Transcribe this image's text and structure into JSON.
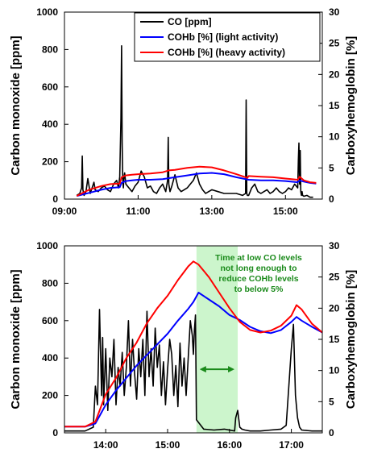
{
  "chart_data": [
    {
      "type": "line",
      "x_range": [
        "09:00",
        "16:00"
      ],
      "x_ticks": [
        "09:00",
        "11:00",
        "13:00",
        "15:00"
      ],
      "ylabel": "Carbon monoxide [ppm]",
      "ylim": [
        0,
        1000
      ],
      "y_ticks": [
        "0",
        "200",
        "400",
        "600",
        "800",
        "1000"
      ],
      "y2label": "Carboxyhemoglobin [%]",
      "y2lim": [
        0,
        30
      ],
      "y2_ticks": [
        "0",
        "5",
        "10",
        "15",
        "20",
        "25",
        "30"
      ],
      "grid": false,
      "legend_position": "top-right",
      "series": [
        {
          "name": "CO [ppm]",
          "axis": "left",
          "color": "#000000",
          "x": [
            "09:20",
            "09:25",
            "09:28",
            "09:29",
            "09:30",
            "09:32",
            "09:35",
            "09:38",
            "09:40",
            "09:42",
            "09:45",
            "09:48",
            "09:50",
            "09:55",
            "10:00",
            "10:05",
            "10:10",
            "10:15",
            "10:20",
            "10:25",
            "10:28",
            "10:30",
            "10:32",
            "10:33",
            "10:34",
            "10:35",
            "10:36",
            "10:37",
            "10:38",
            "10:40",
            "10:45",
            "10:50",
            "10:55",
            "11:00",
            "11:05",
            "11:10",
            "11:15",
            "11:20",
            "11:25",
            "11:30",
            "11:35",
            "11:40",
            "11:45",
            "11:48",
            "11:49",
            "11:50",
            "11:52",
            "11:55",
            "12:00",
            "12:05",
            "12:10",
            "12:15",
            "12:20",
            "12:25",
            "12:30",
            "12:35",
            "12:40",
            "12:45",
            "12:50",
            "12:55",
            "13:00",
            "13:10",
            "13:20",
            "13:30",
            "13:40",
            "13:50",
            "13:55",
            "13:56",
            "13:57",
            "13:58",
            "14:00",
            "14:05",
            "14:10",
            "14:15",
            "14:20",
            "14:25",
            "14:30",
            "14:35",
            "14:40",
            "14:45",
            "14:50",
            "14:55",
            "15:00",
            "15:05",
            "15:10",
            "15:15",
            "15:20",
            "15:21",
            "15:22",
            "15:23",
            "15:24",
            "15:25",
            "15:26",
            "15:27",
            "15:28",
            "15:30",
            "15:35",
            "15:40",
            "15:45"
          ],
          "values": [
            20,
            30,
            60,
            230,
            50,
            20,
            40,
            110,
            70,
            30,
            60,
            90,
            50,
            40,
            60,
            70,
            50,
            40,
            80,
            100,
            60,
            120,
            430,
            820,
            300,
            100,
            60,
            120,
            140,
            80,
            60,
            40,
            70,
            90,
            150,
            120,
            60,
            70,
            40,
            30,
            60,
            80,
            40,
            100,
            330,
            80,
            40,
            70,
            130,
            60,
            40,
            50,
            60,
            80,
            100,
            140,
            80,
            50,
            30,
            40,
            50,
            40,
            30,
            30,
            30,
            20,
            30,
            530,
            30,
            20,
            20,
            60,
            80,
            40,
            30,
            40,
            50,
            30,
            40,
            60,
            40,
            30,
            40,
            60,
            50,
            80,
            60,
            210,
            300,
            80,
            260,
            40,
            20,
            40,
            20,
            15,
            20,
            10,
            10
          ]
        },
        {
          "name": "COHb [%] (light activity)",
          "axis": "right",
          "color": "#0000ff",
          "x": [
            "09:20",
            "09:40",
            "10:00",
            "10:15",
            "10:30",
            "10:33",
            "10:40",
            "10:50",
            "11:00",
            "11:20",
            "11:40",
            "12:00",
            "12:20",
            "12:40",
            "13:00",
            "13:20",
            "13:40",
            "14:00",
            "14:20",
            "14:40",
            "15:00",
            "15:20",
            "15:23",
            "15:30",
            "15:40",
            "15:50"
          ],
          "values": [
            0.5,
            1.0,
            1.5,
            1.8,
            1.9,
            2.6,
            2.9,
            3.0,
            3.1,
            3.1,
            3.2,
            3.5,
            3.8,
            4.1,
            4.2,
            4.0,
            3.5,
            3.1,
            3.0,
            3.0,
            2.9,
            2.7,
            3.0,
            2.8,
            2.6,
            2.5
          ]
        },
        {
          "name": "COHb [%] (heavy activity)",
          "axis": "right",
          "color": "#ff0000",
          "x": [
            "09:20",
            "09:40",
            "10:00",
            "10:15",
            "10:30",
            "10:33",
            "10:40",
            "10:50",
            "11:00",
            "11:20",
            "11:40",
            "11:50",
            "12:00",
            "12:20",
            "12:40",
            "13:00",
            "13:20",
            "13:40",
            "13:58",
            "14:00",
            "14:20",
            "14:40",
            "15:00",
            "15:20",
            "15:23",
            "15:30",
            "15:40",
            "15:50"
          ],
          "values": [
            0.5,
            1.5,
            2.1,
            2.4,
            2.5,
            3.5,
            3.8,
            3.9,
            4.0,
            4.1,
            4.3,
            4.6,
            4.7,
            5.0,
            5.2,
            5.1,
            4.6,
            4.0,
            3.4,
            3.7,
            3.6,
            3.5,
            3.3,
            3.1,
            3.6,
            3.0,
            2.7,
            2.6
          ]
        }
      ]
    },
    {
      "type": "line",
      "x_range": [
        "13:20",
        "17:30"
      ],
      "x_ticks": [
        "14:00",
        "15:00",
        "16:00",
        "17:00"
      ],
      "ylabel": "Carbon monoxide [ppm]",
      "ylim": [
        0,
        1000
      ],
      "y_ticks": [
        "0",
        "200",
        "400",
        "600",
        "800",
        "1000"
      ],
      "y2label": "Carboxyhemoglobin [%]",
      "y2lim": [
        0,
        30
      ],
      "y2_ticks": [
        "0",
        "5",
        "10",
        "15",
        "20",
        "25",
        "30"
      ],
      "grid": false,
      "highlight": {
        "x_start": "15:28",
        "x_end": "16:08",
        "color": "#ccf5cc"
      },
      "annotation": {
        "lines": [
          "Time at low CO levels",
          "not long enough to",
          "reduce COHb levels",
          "to below 5%"
        ],
        "color": "#1a8a1a"
      },
      "series": [
        {
          "name": "CO [ppm]",
          "axis": "left",
          "color": "#000000",
          "x": [
            "13:20",
            "13:40",
            "13:48",
            "13:50",
            "13:52",
            "13:54",
            "13:56",
            "13:57",
            "13:58",
            "14:00",
            "14:02",
            "14:04",
            "14:06",
            "14:08",
            "14:10",
            "14:12",
            "14:14",
            "14:16",
            "14:18",
            "14:20",
            "14:22",
            "14:24",
            "14:26",
            "14:28",
            "14:30",
            "14:32",
            "14:34",
            "14:36",
            "14:38",
            "14:40",
            "14:42",
            "14:44",
            "14:46",
            "14:48",
            "14:50",
            "14:52",
            "14:54",
            "14:56",
            "14:58",
            "15:00",
            "15:02",
            "15:04",
            "15:06",
            "15:08",
            "15:10",
            "15:12",
            "15:14",
            "15:16",
            "15:18",
            "15:20",
            "15:22",
            "15:24",
            "15:25",
            "15:26",
            "15:27",
            "15:28",
            "15:35",
            "15:45",
            "15:55",
            "16:05",
            "16:06",
            "16:08",
            "16:10",
            "16:12",
            "16:15",
            "16:20",
            "16:30",
            "16:40",
            "16:50",
            "16:55",
            "17:00",
            "17:02",
            "17:04",
            "17:06",
            "17:08",
            "17:10",
            "17:20",
            "17:30"
          ],
          "values": [
            10,
            10,
            30,
            250,
            150,
            660,
            200,
            510,
            150,
            450,
            120,
            400,
            300,
            500,
            150,
            350,
            250,
            430,
            200,
            350,
            600,
            250,
            500,
            320,
            180,
            450,
            300,
            500,
            200,
            650,
            300,
            450,
            250,
            560,
            350,
            470,
            200,
            380,
            150,
            340,
            500,
            420,
            200,
            360,
            140,
            480,
            250,
            400,
            200,
            400,
            600,
            520,
            420,
            550,
            630,
            70,
            20,
            15,
            20,
            10,
            80,
            120,
            30,
            20,
            15,
            10,
            10,
            15,
            20,
            40,
            450,
            580,
            200,
            80,
            30,
            15,
            10,
            10
          ]
        },
        {
          "name": "COHb [%] (light activity)",
          "axis": "right",
          "color": "#0000ff",
          "x": [
            "13:20",
            "13:40",
            "13:50",
            "14:00",
            "14:10",
            "14:20",
            "14:30",
            "14:40",
            "14:50",
            "15:00",
            "15:10",
            "15:20",
            "15:25",
            "15:30",
            "15:40",
            "15:50",
            "16:00",
            "16:10",
            "16:20",
            "16:30",
            "16:40",
            "16:50",
            "17:00",
            "17:05",
            "17:10",
            "17:20",
            "17:30"
          ],
          "values": [
            1.0,
            1.0,
            1.5,
            4.5,
            6.8,
            8.8,
            10.8,
            12.5,
            14.2,
            15.9,
            18.0,
            19.9,
            21.0,
            22.5,
            21.4,
            20.3,
            18.9,
            18.1,
            17.0,
            16.3,
            16.0,
            16.5,
            17.8,
            18.6,
            18.0,
            17.0,
            16.1
          ]
        },
        {
          "name": "COHb [%] (heavy activity)",
          "axis": "right",
          "color": "#ff0000",
          "x": [
            "13:20",
            "13:40",
            "13:50",
            "14:00",
            "14:10",
            "14:20",
            "14:30",
            "14:40",
            "14:50",
            "15:00",
            "15:10",
            "15:20",
            "15:25",
            "15:30",
            "15:40",
            "15:50",
            "16:00",
            "16:10",
            "16:20",
            "16:30",
            "16:40",
            "16:50",
            "17:00",
            "17:05",
            "17:10",
            "17:20",
            "17:30"
          ],
          "values": [
            1.0,
            1.0,
            1.8,
            6.2,
            8.8,
            12.0,
            14.5,
            17.6,
            20.0,
            22.0,
            24.5,
            26.7,
            27.5,
            27.0,
            25.0,
            22.5,
            20.0,
            17.8,
            16.5,
            16.1,
            16.4,
            17.2,
            18.8,
            20.5,
            19.8,
            17.5,
            16.1
          ]
        }
      ]
    }
  ]
}
